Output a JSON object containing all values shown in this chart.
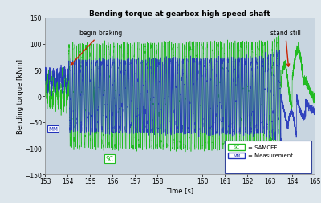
{
  "title": "Bending torque at gearbox high speed shaft",
  "xlabel": "Time [s]",
  "ylabel": "Bending torque [kNm]",
  "xlim": [
    153,
    165
  ],
  "ylim": [
    -150,
    150
  ],
  "xticks": [
    153,
    154,
    155,
    156,
    157,
    158,
    160,
    161,
    162,
    163,
    164,
    165
  ],
  "yticks": [
    -150,
    -100,
    -50,
    0,
    50,
    100,
    150
  ],
  "bg_color": "#c8d5e0",
  "sc_color": "#22bb22",
  "mm_color": "#2233bb",
  "annotation_color": "#cc2200",
  "begin_braking_x": 154.05,
  "stand_still_x": 163.85,
  "legend_sc_label": "= SAMCEF",
  "legend_mm_label": "= Measurement"
}
